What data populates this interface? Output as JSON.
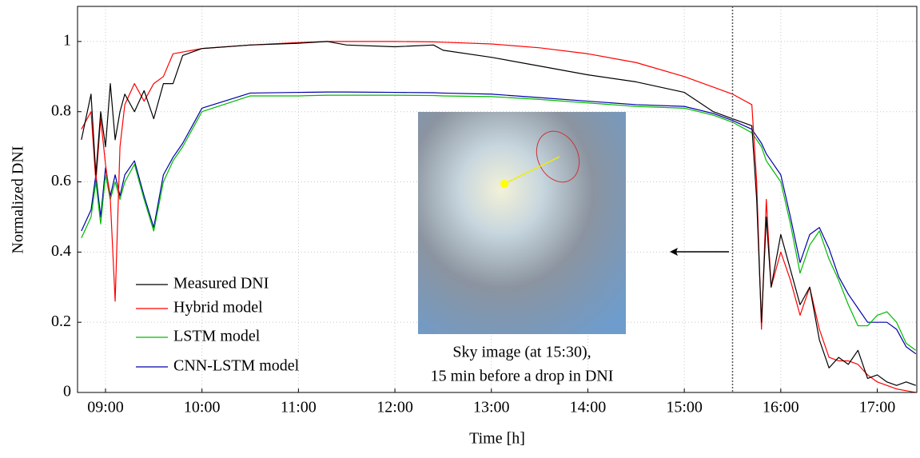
{
  "chart_data": {
    "type": "line",
    "xlabel": "Time [h]",
    "ylabel": "Normalized DNI",
    "xlim": [
      8.71,
      17.41
    ],
    "ylim": [
      0,
      1.1
    ],
    "xticks": [
      {
        "value": 9,
        "label": "09:00"
      },
      {
        "value": 10,
        "label": "10:00"
      },
      {
        "value": 11,
        "label": "11:00"
      },
      {
        "value": 12,
        "label": "12:00"
      },
      {
        "value": 13,
        "label": "13:00"
      },
      {
        "value": 14,
        "label": "14:00"
      },
      {
        "value": 15,
        "label": "15:00"
      },
      {
        "value": 16,
        "label": "16:00"
      },
      {
        "value": 17,
        "label": "17:00"
      }
    ],
    "yticks": [
      0,
      0.2,
      0.4,
      0.6,
      0.8,
      1
    ],
    "grid": true,
    "legend": "lower left",
    "vline": 15.5,
    "annotations": [
      "Sky image (at 15:30),",
      "15 min before a drop in DNI"
    ],
    "x": [
      8.75,
      8.85,
      8.9,
      8.95,
      9.0,
      9.05,
      9.1,
      9.15,
      9.2,
      9.3,
      9.4,
      9.5,
      9.6,
      9.7,
      9.8,
      9.9,
      10.0,
      10.5,
      11.0,
      11.3,
      11.5,
      12.0,
      12.4,
      12.5,
      13.0,
      13.5,
      14.0,
      14.5,
      15.0,
      15.3,
      15.5,
      15.7,
      15.75,
      15.8,
      15.85,
      15.9,
      16.0,
      16.1,
      16.2,
      16.3,
      16.4,
      16.5,
      16.6,
      16.7,
      16.8,
      16.9,
      17.0,
      17.1,
      17.2,
      17.3,
      17.4
    ],
    "series": [
      {
        "name": "Measured DNI",
        "color": "#000000",
        "values": [
          0.72,
          0.85,
          0.62,
          0.8,
          0.7,
          0.88,
          0.72,
          0.8,
          0.85,
          0.8,
          0.86,
          0.78,
          0.88,
          0.88,
          0.96,
          0.97,
          0.98,
          0.99,
          0.995,
          1.0,
          0.99,
          0.985,
          0.99,
          0.975,
          0.955,
          0.93,
          0.905,
          0.885,
          0.855,
          0.8,
          0.78,
          0.76,
          0.55,
          0.2,
          0.5,
          0.3,
          0.45,
          0.35,
          0.25,
          0.3,
          0.15,
          0.07,
          0.1,
          0.08,
          0.12,
          0.04,
          0.05,
          0.03,
          0.02,
          0.03,
          0.02
        ]
      },
      {
        "name": "Hybrid model",
        "color": "#ff0000",
        "values": [
          0.75,
          0.8,
          0.6,
          0.78,
          0.65,
          0.55,
          0.26,
          0.7,
          0.82,
          0.88,
          0.83,
          0.88,
          0.9,
          0.965,
          0.97,
          0.975,
          0.98,
          0.99,
          0.997,
          1.0,
          1.0,
          1.0,
          0.999,
          0.998,
          0.993,
          0.982,
          0.965,
          0.94,
          0.9,
          0.87,
          0.85,
          0.82,
          0.6,
          0.18,
          0.55,
          0.3,
          0.4,
          0.32,
          0.22,
          0.3,
          0.18,
          0.1,
          0.09,
          0.09,
          0.08,
          0.05,
          0.03,
          0.02,
          0.01,
          0.005,
          0.0
        ]
      },
      {
        "name": "LSTM model",
        "color": "#00bb00",
        "values": [
          0.44,
          0.5,
          0.6,
          0.48,
          0.62,
          0.55,
          0.6,
          0.55,
          0.6,
          0.65,
          0.55,
          0.46,
          0.6,
          0.66,
          0.7,
          0.75,
          0.8,
          0.845,
          0.845,
          0.847,
          0.847,
          0.847,
          0.846,
          0.845,
          0.843,
          0.835,
          0.825,
          0.815,
          0.81,
          0.79,
          0.77,
          0.74,
          0.72,
          0.7,
          0.66,
          0.64,
          0.6,
          0.48,
          0.34,
          0.42,
          0.46,
          0.38,
          0.32,
          0.25,
          0.19,
          0.19,
          0.22,
          0.23,
          0.2,
          0.14,
          0.12
        ]
      },
      {
        "name": "CNN-LSTM model",
        "color": "#0000aa",
        "values": [
          0.46,
          0.52,
          0.62,
          0.5,
          0.64,
          0.56,
          0.62,
          0.56,
          0.62,
          0.66,
          0.56,
          0.47,
          0.62,
          0.67,
          0.71,
          0.76,
          0.81,
          0.853,
          0.855,
          0.856,
          0.856,
          0.855,
          0.854,
          0.853,
          0.85,
          0.84,
          0.83,
          0.82,
          0.815,
          0.795,
          0.775,
          0.75,
          0.73,
          0.71,
          0.68,
          0.66,
          0.62,
          0.5,
          0.37,
          0.45,
          0.47,
          0.41,
          0.33,
          0.28,
          0.24,
          0.2,
          0.2,
          0.2,
          0.18,
          0.13,
          0.11
        ]
      }
    ]
  }
}
